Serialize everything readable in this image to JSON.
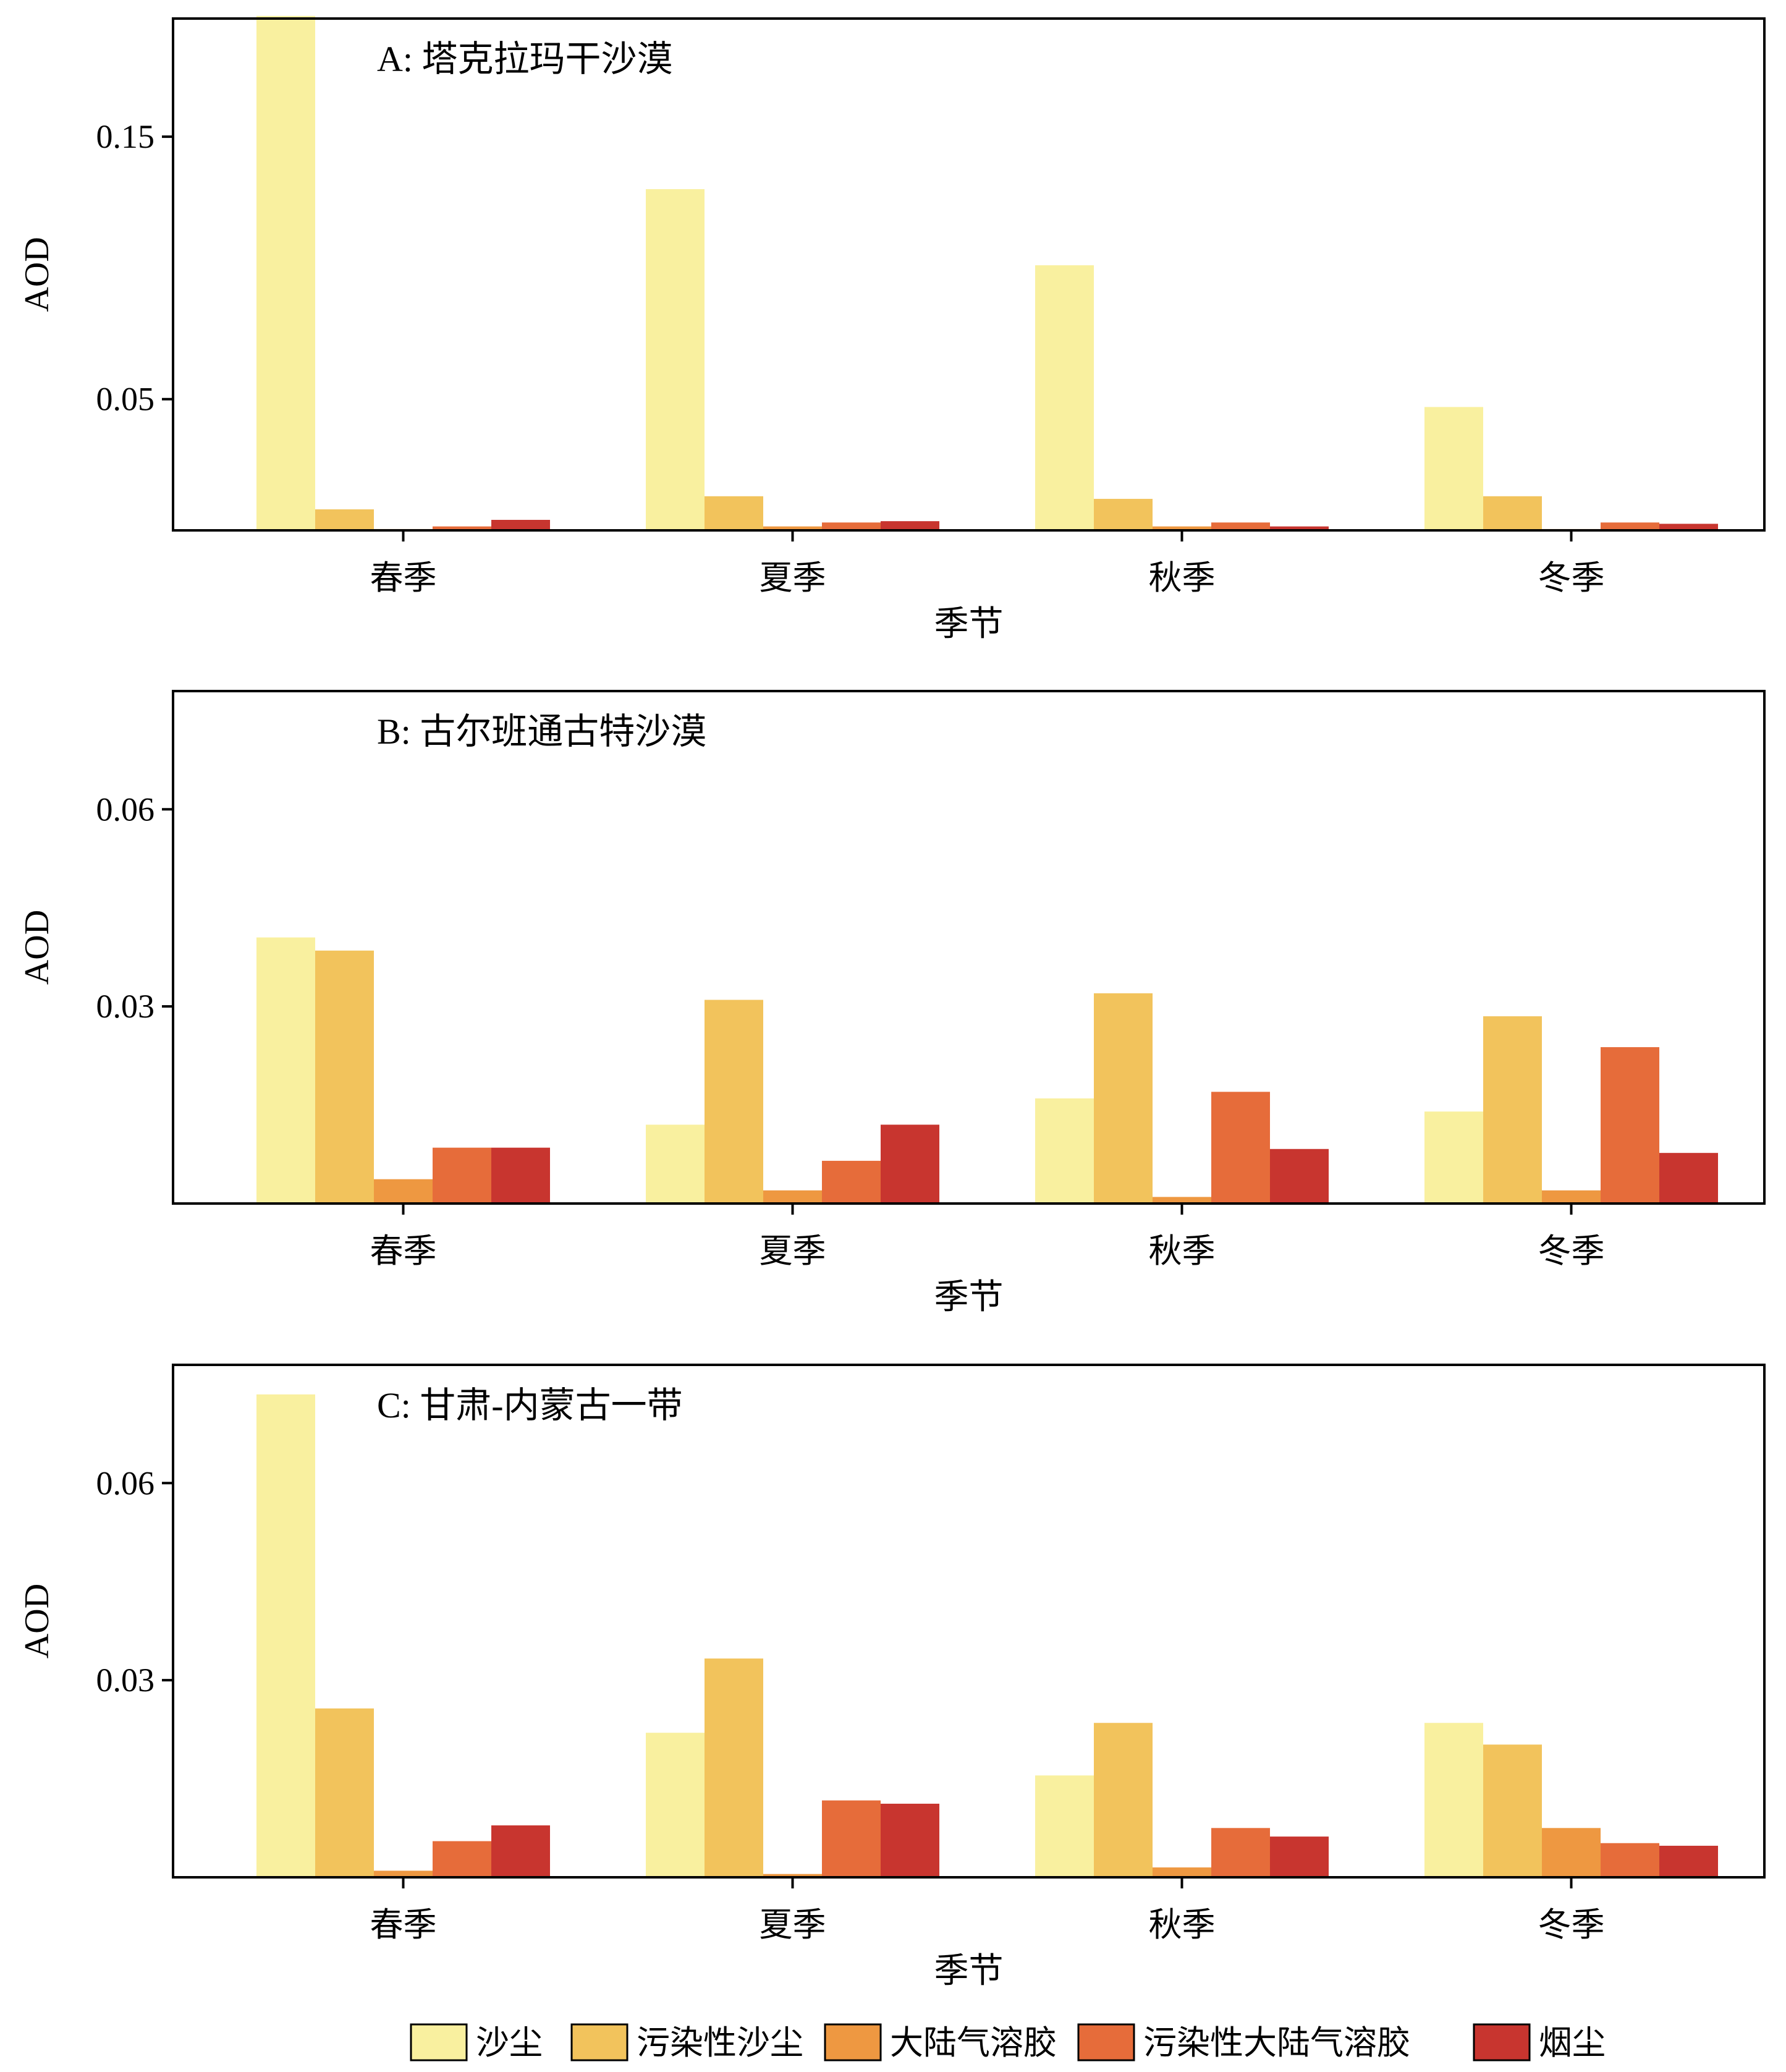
{
  "chart_data": [
    {
      "type": "bar",
      "title": "A: 塔克拉玛干沙漠",
      "xlabel": "季节",
      "ylabel": "AOD",
      "categories": [
        "春季",
        "夏季",
        "秋季",
        "冬季"
      ],
      "ylim": [
        0.0,
        0.195
      ],
      "yticks": [
        0.05,
        0.15
      ],
      "ytick_labels": [
        "0.05",
        "0.15"
      ],
      "series": [
        {
          "name": "沙尘",
          "values": [
            0.196,
            0.13,
            0.101,
            0.047
          ]
        },
        {
          "name": "污染性沙尘",
          "values": [
            0.008,
            0.013,
            0.012,
            0.013
          ]
        },
        {
          "name": "大陆气溶胶",
          "values": [
            0.0005,
            0.0015,
            0.0015,
            0.0005
          ]
        },
        {
          "name": "污染性大陆气溶胶",
          "values": [
            0.0015,
            0.003,
            0.003,
            0.003
          ]
        },
        {
          "name": "烟尘",
          "values": [
            0.004,
            0.0035,
            0.0015,
            0.0025
          ]
        }
      ]
    },
    {
      "type": "bar",
      "title": "B: 古尔班通古特沙漠",
      "xlabel": "季节",
      "ylabel": "AOD",
      "categories": [
        "春季",
        "夏季",
        "秋季",
        "冬季"
      ],
      "ylim": [
        0.0,
        0.078
      ],
      "yticks": [
        0.03,
        0.06
      ],
      "ytick_labels": [
        "0.03",
        "0.06"
      ],
      "series": [
        {
          "name": "沙尘",
          "values": [
            0.0405,
            0.012,
            0.016,
            0.014
          ]
        },
        {
          "name": "污染性沙尘",
          "values": [
            0.0385,
            0.031,
            0.032,
            0.0285
          ]
        },
        {
          "name": "大陆气溶胶",
          "values": [
            0.0037,
            0.002,
            0.001,
            0.002
          ]
        },
        {
          "name": "污染性大陆气溶胶",
          "values": [
            0.0085,
            0.0065,
            0.017,
            0.0238
          ]
        },
        {
          "name": "烟尘",
          "values": [
            0.0085,
            0.012,
            0.0083,
            0.0077
          ]
        }
      ]
    },
    {
      "type": "bar",
      "title": "C: 甘肃-内蒙古一带",
      "xlabel": "季节",
      "ylabel": "AOD",
      "categories": [
        "春季",
        "夏季",
        "秋季",
        "冬季"
      ],
      "ylim": [
        0.0,
        0.078
      ],
      "yticks": [
        0.03,
        0.06
      ],
      "ytick_labels": [
        "0.03",
        "0.06"
      ],
      "series": [
        {
          "name": "沙尘",
          "values": [
            0.0735,
            0.022,
            0.0155,
            0.0235
          ]
        },
        {
          "name": "污染性沙尘",
          "values": [
            0.0257,
            0.0333,
            0.0235,
            0.0202
          ]
        },
        {
          "name": "大陆气溶胶",
          "values": [
            0.001,
            0.0005,
            0.0015,
            0.0075
          ]
        },
        {
          "name": "污染性大陆气溶胶",
          "values": [
            0.0055,
            0.0117,
            0.0075,
            0.0052
          ]
        },
        {
          "name": "烟尘",
          "values": [
            0.0079,
            0.0112,
            0.0062,
            0.0048
          ]
        }
      ]
    }
  ],
  "legend": {
    "placement": "bottom",
    "items": [
      "沙尘",
      "污染性沙尘",
      "大陆气溶胶",
      "污染性大陆气溶胶",
      "烟尘"
    ]
  },
  "colors": {
    "沙尘": "#F9F09F",
    "污染性沙尘": "#F2C35C",
    "大陆气溶胶": "#EE9841",
    "污染性大陆气溶胶": "#E66C3A",
    "烟尘": "#C8352F"
  }
}
